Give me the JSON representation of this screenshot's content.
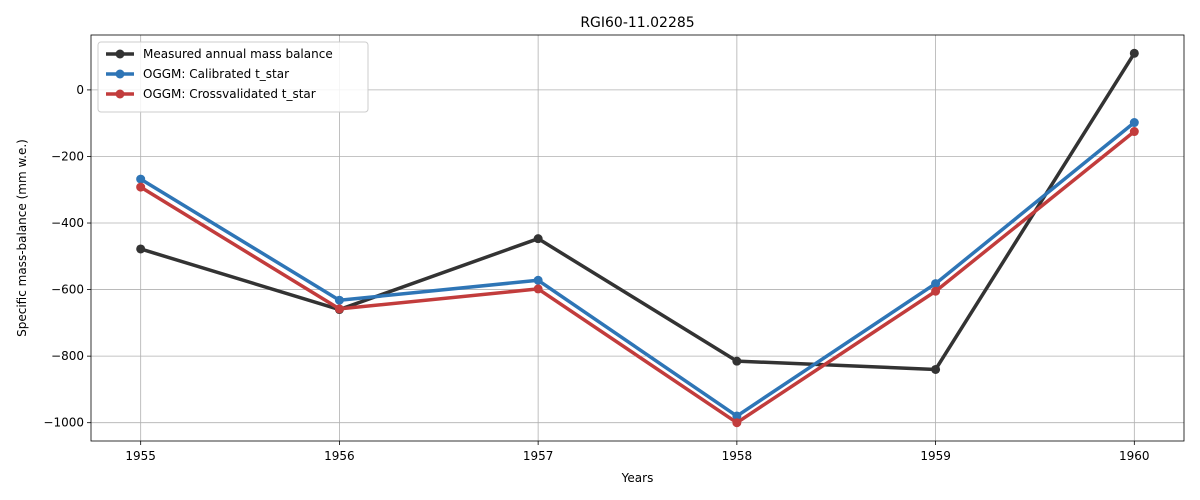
{
  "chart_data": {
    "type": "line",
    "title": "RGI60-11.02285",
    "xlabel": "Years",
    "ylabel": "Specific mass-balance (mm w.e.)",
    "x": [
      1955,
      1956,
      1957,
      1958,
      1959,
      1960
    ],
    "xticks": [
      "1955",
      "1956",
      "1957",
      "1958",
      "1959",
      "1960"
    ],
    "yticks": [
      0,
      -200,
      -400,
      -600,
      -800,
      -1000
    ],
    "ytick_labels": [
      "0",
      "−200",
      "−400",
      "−600",
      "−800",
      "−1000"
    ],
    "xlim": [
      1954.75,
      1960.25
    ],
    "ylim": [
      -1055,
      165
    ],
    "grid": true,
    "legend_position": "top-left",
    "series": [
      {
        "name": "Measured annual mass balance",
        "color": "#333333",
        "values": [
          -478,
          -660,
          -447,
          -815,
          -840,
          110
        ]
      },
      {
        "name": "OGGM: Calibrated t_star",
        "color": "#2e75b6",
        "values": [
          -268,
          -632,
          -572,
          -980,
          -582,
          -98
        ]
      },
      {
        "name": "OGGM: Crossvalidated t_star",
        "color": "#c23c3c",
        "values": [
          -292,
          -658,
          -598,
          -1000,
          -605,
          -125
        ]
      }
    ]
  }
}
